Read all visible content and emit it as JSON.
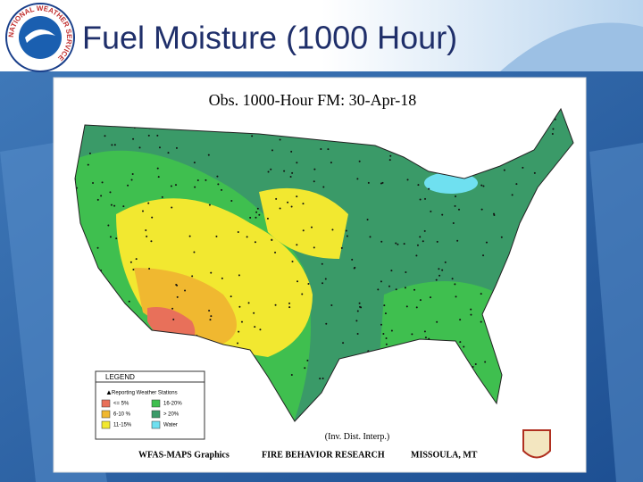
{
  "header": {
    "logo_text": "NATIONAL WEATHER SERVICE",
    "title": "Fuel Moisture (1000 Hour)"
  },
  "map": {
    "title": "Obs. 1000-Hour FM:   30-Apr-18",
    "legend": {
      "title": "LEGEND",
      "stations": "Reporting Weather Stations",
      "items": [
        {
          "label": "<= 5%",
          "color": "#e8705a"
        },
        {
          "label": "6-10 %",
          "color": "#f0b830"
        },
        {
          "label": "11-15%",
          "color": "#f2e830"
        },
        {
          "label": "16-20%",
          "color": "#3fbf4f"
        },
        {
          "label": "> 20%",
          "color": "#3a9a68"
        },
        {
          "label": "Water",
          "color": "#6fe0f0"
        }
      ]
    },
    "interpolation": "(Inv. Dist. Interp.)",
    "credits": [
      "WFAS-MAPS Graphics",
      "FIRE BEHAVIOR RESEARCH",
      "MISSOULA, MT"
    ]
  }
}
